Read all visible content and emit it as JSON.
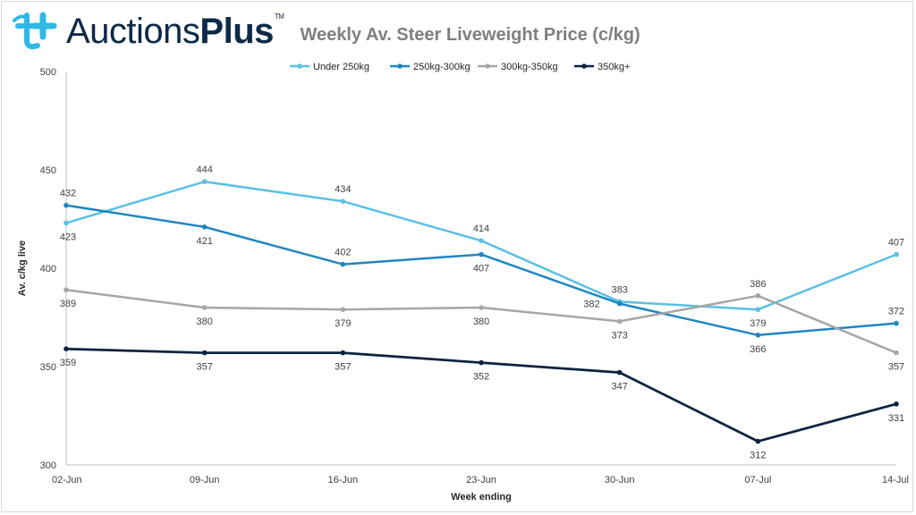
{
  "brand": {
    "name_light": "Auctions",
    "name_bold": "Plus",
    "trademark": "TM"
  },
  "colors": {
    "brand_navy": "#0d2a47",
    "brand_cyan": "#2fb8e6"
  },
  "chart_data": {
    "type": "line",
    "title": "Weekly Av. Steer Liveweight Price (c/kg)",
    "xlabel": "Week ending",
    "ylabel": "Av. c/kg live",
    "ylim": [
      300,
      500
    ],
    "yticks": [
      300,
      350,
      400,
      450,
      500
    ],
    "categories": [
      "02-Jun",
      "09-Jun",
      "16-Jun",
      "23-Jun",
      "30-Jun",
      "07-Jul",
      "14-Jul"
    ],
    "legend_position": "top",
    "grid": false,
    "series": [
      {
        "name": "Under 250kg",
        "color": "#5bc0e3",
        "values": [
          423,
          444,
          434,
          414,
          383,
          379,
          407
        ],
        "label_pos": [
          "below",
          "above",
          "above",
          "above",
          "above",
          "below",
          "above"
        ]
      },
      {
        "name": "250kg-300kg",
        "color": "#1f86c0",
        "values": [
          432,
          421,
          402,
          407,
          382,
          366,
          372
        ],
        "label_pos": [
          "above",
          "below",
          "above",
          "below",
          "left",
          "below",
          "above"
        ]
      },
      {
        "name": "300kg-350kg",
        "color": "#a6a6a6",
        "values": [
          389,
          380,
          379,
          380,
          373,
          386,
          357
        ],
        "label_pos": [
          "below",
          "below",
          "below",
          "below",
          "below",
          "above",
          "below"
        ]
      },
      {
        "name": "350kg+",
        "color": "#0c2340",
        "values": [
          359,
          357,
          357,
          352,
          347,
          312,
          331
        ],
        "label_pos": [
          "below",
          "below",
          "below",
          "below",
          "below",
          "below",
          "below"
        ]
      }
    ]
  }
}
